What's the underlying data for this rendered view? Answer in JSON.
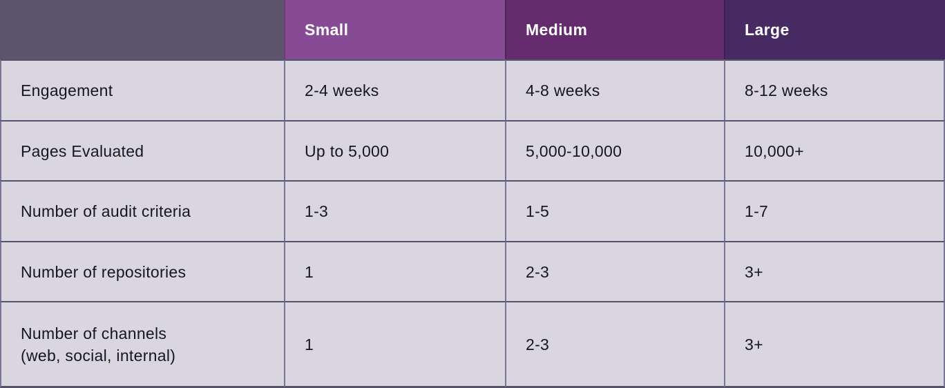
{
  "colors": {
    "header-blank-bg": "#5b546b",
    "header-small-bg": "#874b95",
    "header-medium-bg": "#652c6d",
    "header-large-bg": "#462a61",
    "cell-bg": "#d9d6e0",
    "border-h": "#56516c",
    "border-v": "#7b7594",
    "text": "#17161e",
    "header-text": "#ffffff"
  },
  "table": {
    "columns": [
      {
        "label": ""
      },
      {
        "label": "Small"
      },
      {
        "label": "Medium"
      },
      {
        "label": "Large"
      }
    ],
    "rows": [
      {
        "label": "Engagement",
        "values": [
          "2-4 weeks",
          "4-8 weeks",
          "8-12 weeks"
        ]
      },
      {
        "label": "Pages Evaluated",
        "values": [
          "Up to 5,000",
          "5,000-10,000",
          "10,000+"
        ]
      },
      {
        "label": "Number of audit criteria",
        "values": [
          "1-3",
          "1-5",
          "1-7"
        ]
      },
      {
        "label": "Number of repositories",
        "values": [
          "1",
          "2-3",
          "3+"
        ]
      },
      {
        "label": "Number of channels",
        "label_line2": "(web, social, internal)",
        "values": [
          "1",
          "2-3",
          "3+"
        ]
      }
    ]
  }
}
